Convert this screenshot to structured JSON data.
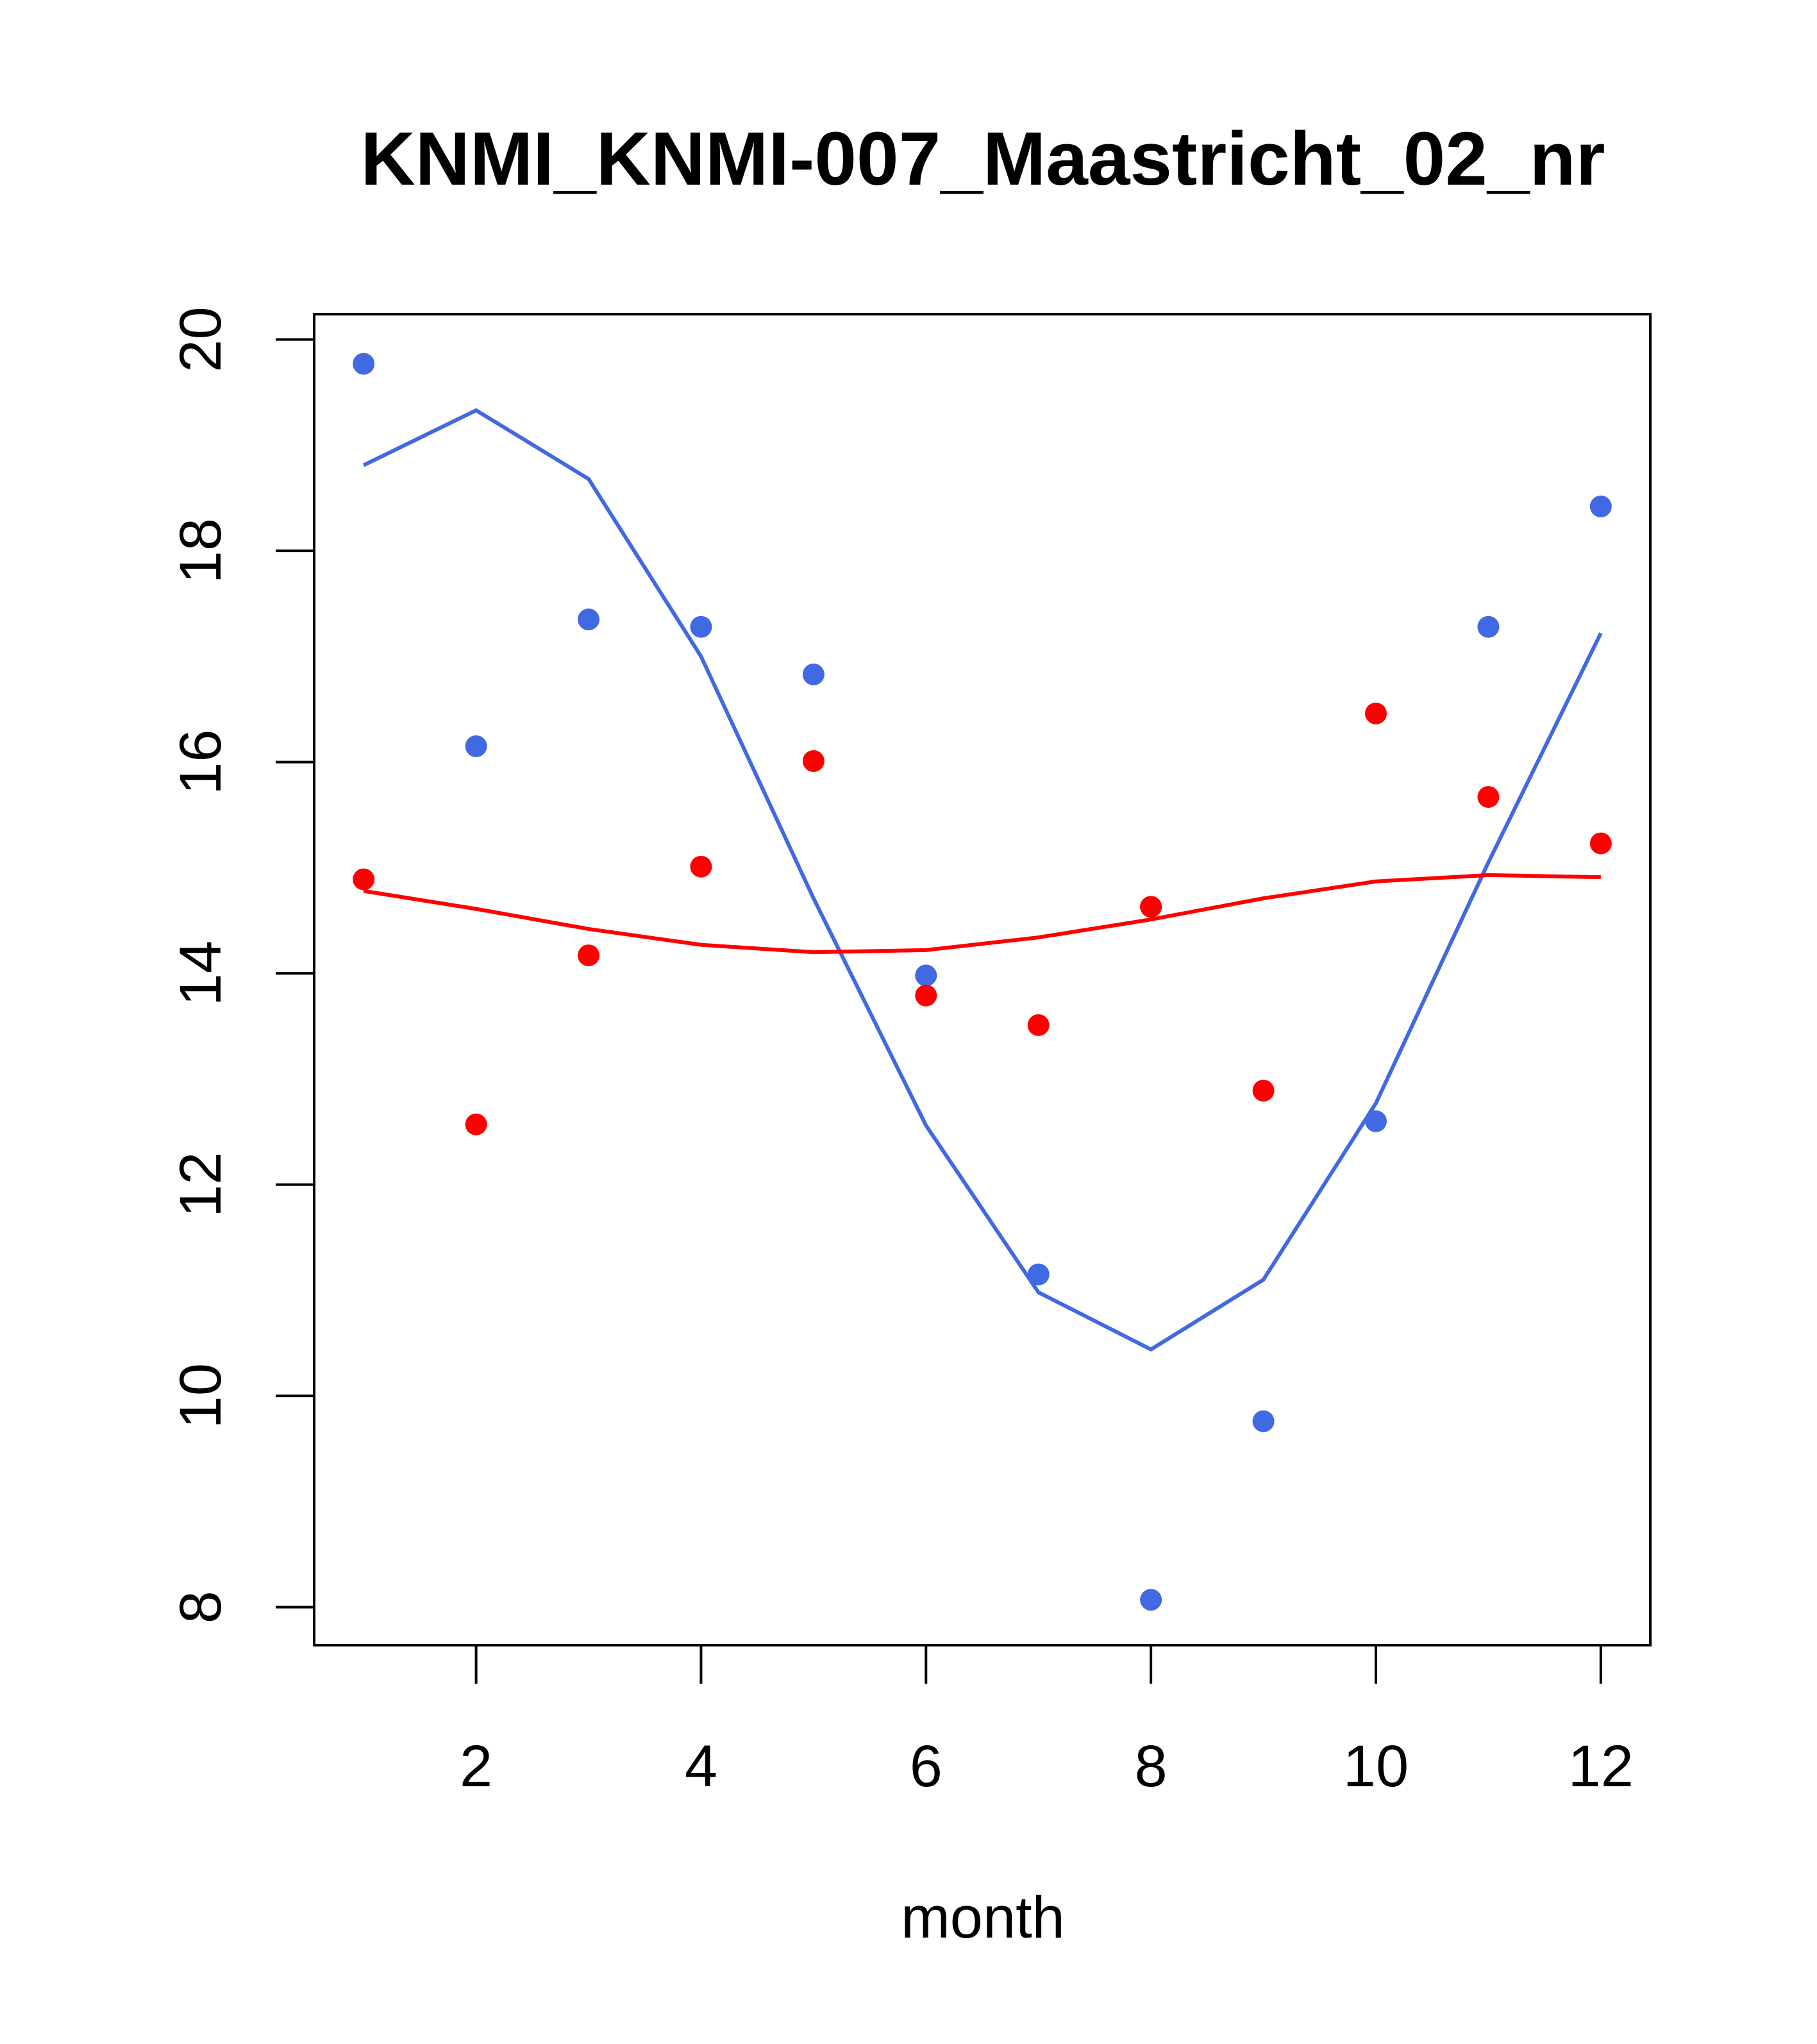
{
  "chart_data": {
    "type": "scatter",
    "title": "KNMI_KNMI-007_Maastricht_02_nr",
    "xlabel": "month",
    "ylabel": "",
    "xlim": [
      0.56,
      12.44
    ],
    "ylim": [
      7.64,
      20.24
    ],
    "x_ticks": [
      2,
      4,
      6,
      8,
      10,
      12
    ],
    "x_tick_labels": [
      "2",
      "4",
      "6",
      "8",
      "10",
      "12"
    ],
    "y_ticks": [
      8,
      10,
      12,
      14,
      16,
      18,
      20
    ],
    "y_tick_labels": [
      "8",
      "10",
      "12",
      "14",
      "16",
      "18",
      "20"
    ],
    "grid": false,
    "legend": "none",
    "x": [
      1,
      2,
      3,
      4,
      5,
      6,
      7,
      8,
      9,
      10,
      11,
      12
    ],
    "series": [
      {
        "color": "#4169E1",
        "points": [
          19.77,
          16.15,
          17.35,
          17.28,
          16.83,
          13.98,
          11.15,
          8.07,
          9.76,
          12.6,
          17.28,
          18.42
        ],
        "line": [
          18.81,
          19.33,
          18.68,
          17.0,
          14.71,
          12.56,
          10.98,
          10.44,
          11.1,
          12.77,
          15.05,
          17.22
        ]
      },
      {
        "color": "#FF0000",
        "points": [
          14.89,
          12.57,
          14.17,
          15.01,
          16.01,
          13.79,
          13.51,
          14.63,
          12.89,
          16.46,
          15.67,
          15.23
        ],
        "line": [
          14.78,
          14.61,
          14.42,
          14.27,
          14.2,
          14.22,
          14.34,
          14.51,
          14.71,
          14.87,
          14.93,
          14.91
        ]
      }
    ]
  }
}
